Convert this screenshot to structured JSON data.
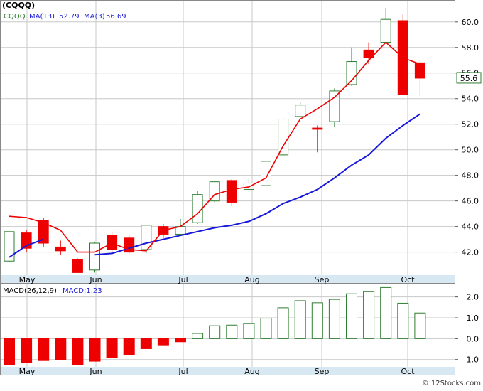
{
  "header": {
    "symbol": "(CQQQ)",
    "legend_ticker": "CQQQ",
    "ma13_label": "MA(13)",
    "ma13_value": "52.79",
    "ma3_label": "MA(3)",
    "ma3_value": "56.69",
    "last_price": "55.6"
  },
  "macd_header": {
    "label": "MACD(26,12,9)",
    "value_label": "MACD:1.23"
  },
  "footer": {
    "copyright": "© 12Stocks.com"
  },
  "colors": {
    "up": "#2e7d32",
    "down": "#ee0000",
    "ma13": "#1818d8",
    "ma3": "#ee0000",
    "grid": "#c8c8c8",
    "axis_band": "#d8e8f2",
    "text": "#000000"
  },
  "chart_data": [
    {
      "type": "candlestick",
      "title": "(CQQQ)",
      "ylim": [
        40.2,
        61.6
      ],
      "y_ticks": [
        "42.0",
        "44.0",
        "46.0",
        "48.0",
        "50.0",
        "52.0",
        "54.0",
        "56.0",
        "58.0",
        "60.0"
      ],
      "x_labels": [
        "May",
        "Jun",
        "Jul",
        "Aug",
        "Sep",
        "Oct"
      ],
      "grid": true,
      "candles": [
        {
          "open": 41.3,
          "close": 43.6,
          "high": 43.6,
          "low": 41.2
        },
        {
          "open": 43.5,
          "close": 42.3,
          "high": 43.7,
          "low": 42.0
        },
        {
          "open": 44.5,
          "close": 42.7,
          "high": 44.7,
          "low": 42.4
        },
        {
          "open": 42.4,
          "close": 42.1,
          "high": 42.9,
          "low": 41.8
        },
        {
          "open": 41.4,
          "close": 40.4,
          "high": 41.5,
          "low": 40.4
        },
        {
          "open": 40.6,
          "close": 42.7,
          "high": 42.8,
          "low": 40.4
        },
        {
          "open": 43.3,
          "close": 42.2,
          "high": 43.6,
          "low": 41.8
        },
        {
          "open": 43.1,
          "close": 42.0,
          "high": 43.3,
          "low": 41.9
        },
        {
          "open": 42.2,
          "close": 44.1,
          "high": 44.1,
          "low": 41.9
        },
        {
          "open": 44.0,
          "close": 43.4,
          "high": 44.2,
          "low": 43.1
        },
        {
          "open": 43.4,
          "close": 44.0,
          "high": 44.6,
          "low": 43.4
        },
        {
          "open": 44.3,
          "close": 46.5,
          "high": 46.8,
          "low": 44.2
        },
        {
          "open": 46.0,
          "close": 47.5,
          "high": 47.6,
          "low": 45.9
        },
        {
          "open": 47.6,
          "close": 45.9,
          "high": 47.7,
          "low": 45.6
        },
        {
          "open": 46.9,
          "close": 47.4,
          "high": 47.8,
          "low": 46.8
        },
        {
          "open": 47.2,
          "close": 49.1,
          "high": 49.3,
          "low": 47.1
        },
        {
          "open": 49.6,
          "close": 52.4,
          "high": 52.5,
          "low": 49.5
        },
        {
          "open": 52.6,
          "close": 53.5,
          "high": 53.7,
          "low": 52.5
        },
        {
          "open": 51.7,
          "close": 51.6,
          "high": 51.9,
          "low": 49.8
        },
        {
          "open": 52.2,
          "close": 54.6,
          "high": 54.8,
          "low": 51.8
        },
        {
          "open": 55.1,
          "close": 56.9,
          "high": 58.0,
          "low": 55.0
        },
        {
          "open": 57.8,
          "close": 57.2,
          "high": 58.4,
          "low": 56.7
        },
        {
          "open": 58.4,
          "close": 60.2,
          "high": 61.1,
          "low": 58.3
        },
        {
          "open": 60.1,
          "close": 54.3,
          "high": 60.6,
          "low": 54.3
        },
        {
          "open": 56.8,
          "close": 55.6,
          "high": 57.0,
          "low": 54.2
        }
      ],
      "series": [
        {
          "name": "MA(13)",
          "values": [
            41.6,
            42.5,
            43.0,
            null,
            null,
            41.8,
            41.9,
            42.3,
            42.7,
            43.0,
            43.3,
            43.6,
            43.9,
            44.1,
            44.4,
            45.0,
            45.8,
            46.3,
            46.9,
            47.8,
            48.8,
            49.6,
            50.9,
            51.9,
            52.8
          ]
        },
        {
          "name": "MA(3)",
          "values": [
            44.8,
            44.7,
            44.3,
            43.7,
            42.0,
            42.0,
            42.7,
            42.2,
            42.1,
            43.7,
            44.0,
            45.0,
            46.5,
            46.9,
            47.1,
            47.8,
            50.3,
            52.4,
            53.2,
            54.1,
            55.4,
            57.0,
            58.4,
            57.2,
            56.7
          ]
        }
      ]
    },
    {
      "type": "bar",
      "title": "MACD(26,12,9)",
      "ylim": [
        -1.35,
        2.6
      ],
      "y_ticks": [
        "2.0",
        "1.0",
        "0.0",
        "-1.0"
      ],
      "x_labels": [
        "May",
        "Jun",
        "Jul",
        "Aug",
        "Sep",
        "Oct"
      ],
      "values": [
        -1.25,
        -1.15,
        -1.05,
        -1.0,
        -1.25,
        -1.08,
        -0.92,
        -0.78,
        -0.48,
        -0.3,
        -0.15,
        0.25,
        0.62,
        0.65,
        0.72,
        0.98,
        1.48,
        1.82,
        1.72,
        1.88,
        2.15,
        2.25,
        2.45,
        1.7,
        1.23
      ]
    }
  ]
}
